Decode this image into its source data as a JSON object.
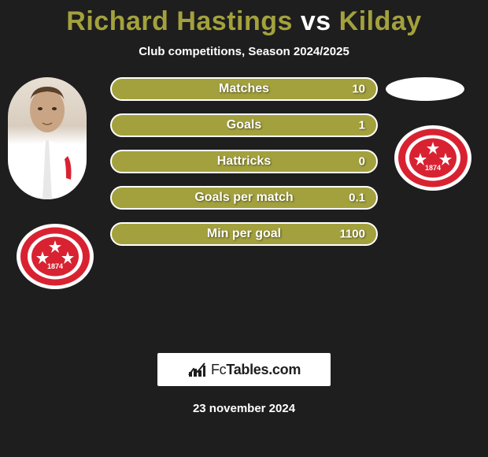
{
  "title": {
    "player1": "Richard Hastings",
    "vs": "vs",
    "player2": "Kilday",
    "player1_color": "#a3a13d",
    "vs_color": "#ffffff",
    "player2_color": "#a3a13d"
  },
  "subtitle": "Club competitions, Season 2024/2025",
  "bars": [
    {
      "label": "Matches",
      "value": "10",
      "fill": "#a3a13d",
      "border": "#ffffff"
    },
    {
      "label": "Goals",
      "value": "1",
      "fill": "#a3a13d",
      "border": "#ffffff"
    },
    {
      "label": "Hattricks",
      "value": "0",
      "fill": "#a3a13d",
      "border": "#ffffff"
    },
    {
      "label": "Goals per match",
      "value": "0.1",
      "fill": "#a3a13d",
      "border": "#ffffff"
    },
    {
      "label": "Min per goal",
      "value": "1100",
      "fill": "#a3a13d",
      "border": "#ffffff"
    }
  ],
  "club_badge": {
    "ring_color": "#d92231",
    "inner_color": "#d92231",
    "text_color": "#ffffff",
    "year": "1874"
  },
  "footer": {
    "brand_prefix": "Fc",
    "brand_suffix": "Tables.com",
    "date": "23 november 2024"
  },
  "colors": {
    "background": "#1e1e1e",
    "bar_text": "#ffffff"
  }
}
